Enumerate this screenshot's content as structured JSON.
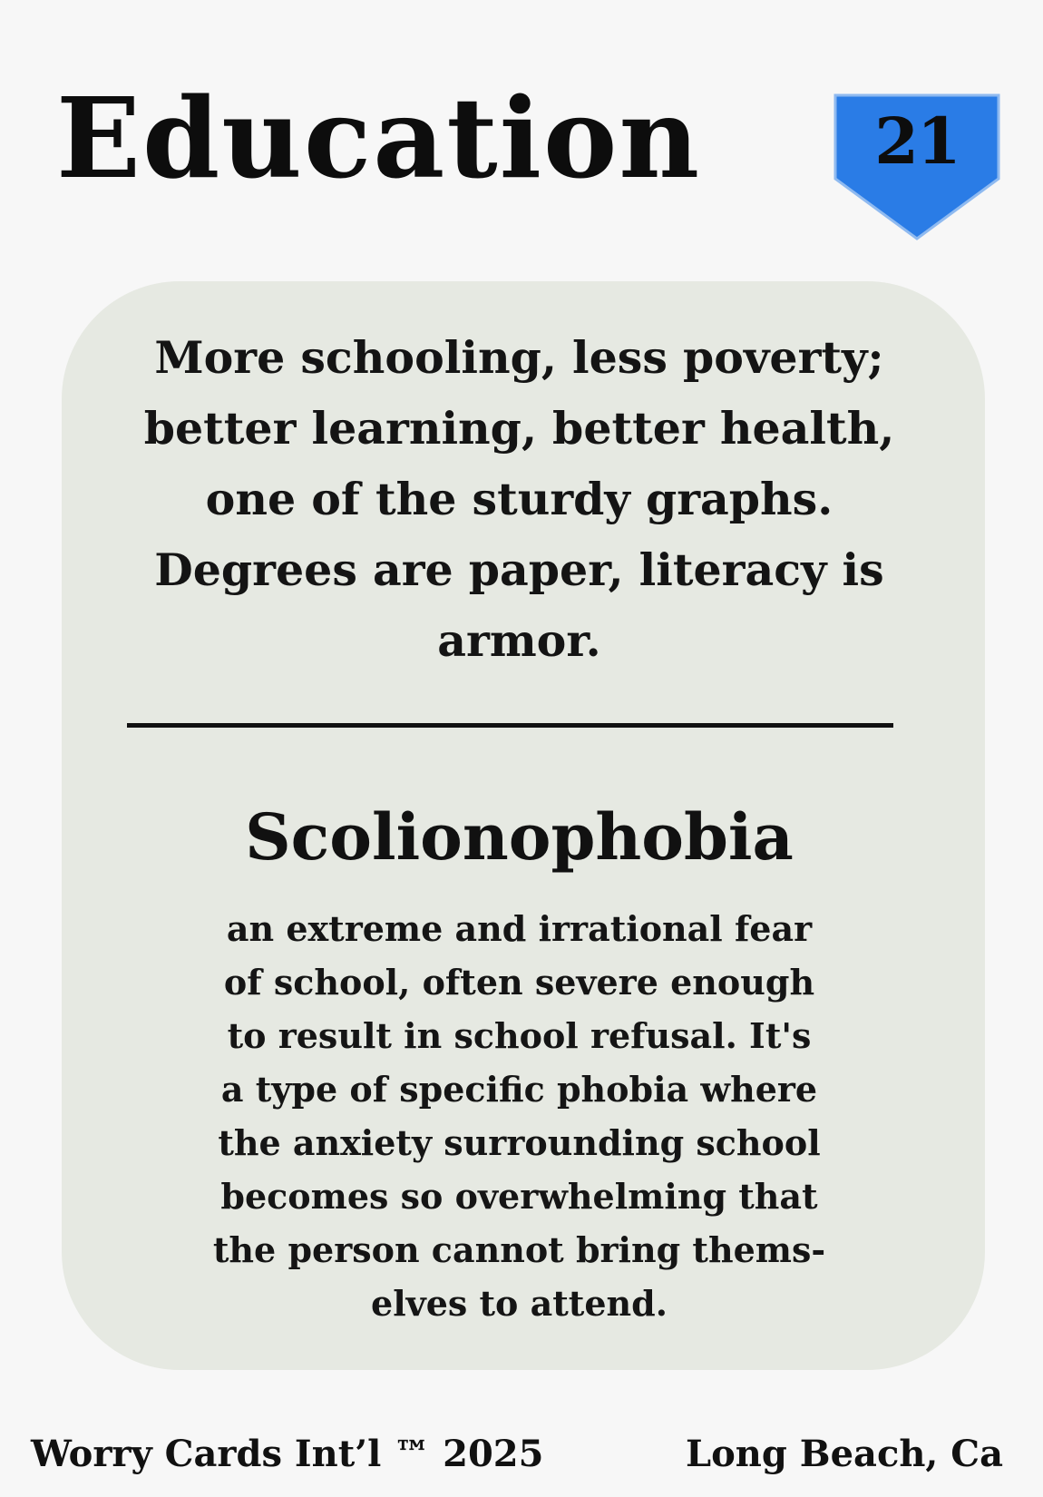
{
  "card": {
    "title": "Education",
    "number": "21",
    "badge_color": "#2a7ce6",
    "summary": "More schooling, less poverty; better learning, better health, one of the sturdy graphs. Degrees are paper, literacy is armor.",
    "term": "Scolionophobia",
    "definition_lines": [
      "an extreme and irrational fear",
      "of school, often severe enough",
      "to result in school refusal. It's",
      "a type of specific phobia where",
      "the anxiety surrounding school",
      "becomes so overwhelming that",
      "the person cannot bring thems-",
      "elves to attend."
    ]
  },
  "footer": {
    "left": "Worry Cards Int’l ™ 2025",
    "right": "Long Beach, Ca"
  },
  "colors": {
    "background": "#f7f7f7",
    "panel": "#e6e9e2",
    "badge": "#2a7ce6",
    "text": "#111111"
  }
}
